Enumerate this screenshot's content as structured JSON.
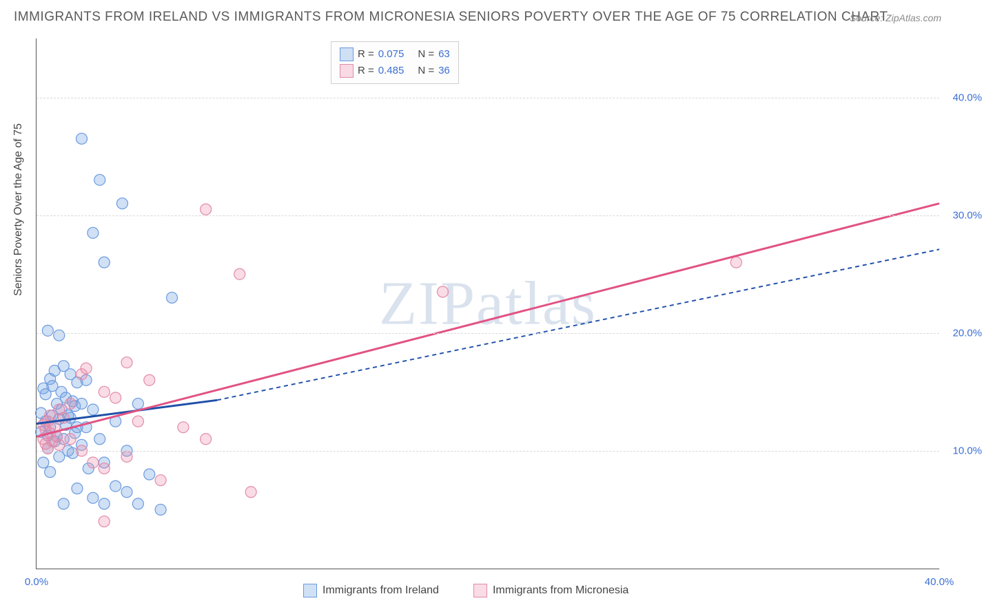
{
  "title": "IMMIGRANTS FROM IRELAND VS IMMIGRANTS FROM MICRONESIA SENIORS POVERTY OVER THE AGE OF 75 CORRELATION CHART",
  "source": "Source: ZipAtlas.com",
  "watermark": "ZIPatlas",
  "y_axis_title": "Seniors Poverty Over the Age of 75",
  "chart": {
    "type": "scatter",
    "xlim": [
      0,
      40
    ],
    "ylim": [
      0,
      45
    ],
    "x_ticks": [
      0,
      40
    ],
    "y_ticks": [
      10,
      20,
      30,
      40
    ],
    "x_tick_labels": [
      "0.0%",
      "40.0%"
    ],
    "y_tick_labels": [
      "10.0%",
      "20.0%",
      "30.0%",
      "40.0%"
    ],
    "grid_y": [
      10,
      20,
      30,
      40
    ],
    "grid_color": "#d8d8d8",
    "background_color": "#ffffff",
    "marker_radius": 8,
    "marker_stroke_width": 1.2,
    "series": [
      {
        "name": "Immigrants from Ireland",
        "fill_color": "rgba(120,165,225,0.35)",
        "stroke_color": "#6a9adf",
        "line_color": "#1f4fa8",
        "R": "0.075",
        "N": "63",
        "trend_solid": [
          [
            0,
            12.3
          ],
          [
            8,
            14.3
          ]
        ],
        "trend_dashed": [
          [
            8,
            14.3
          ],
          [
            40,
            27.1
          ]
        ],
        "points": [
          [
            0.2,
            11.6
          ],
          [
            0.2,
            13.2
          ],
          [
            0.3,
            9.0
          ],
          [
            0.3,
            15.3
          ],
          [
            0.4,
            12.5
          ],
          [
            0.4,
            14.8
          ],
          [
            0.5,
            10.2
          ],
          [
            0.5,
            11.3
          ],
          [
            0.6,
            16.1
          ],
          [
            0.6,
            12.0
          ],
          [
            0.6,
            8.2
          ],
          [
            0.7,
            13.0
          ],
          [
            0.7,
            15.5
          ],
          [
            0.8,
            10.8
          ],
          [
            0.8,
            16.8
          ],
          [
            0.9,
            11.2
          ],
          [
            0.9,
            14.0
          ],
          [
            1.0,
            12.7
          ],
          [
            1.0,
            9.5
          ],
          [
            1.1,
            15.0
          ],
          [
            1.1,
            13.5
          ],
          [
            1.2,
            11.0
          ],
          [
            1.2,
            17.2
          ],
          [
            1.3,
            12.2
          ],
          [
            1.3,
            14.5
          ],
          [
            1.4,
            10.0
          ],
          [
            1.4,
            13.0
          ],
          [
            1.5,
            16.5
          ],
          [
            1.5,
            12.8
          ],
          [
            1.6,
            9.8
          ],
          [
            1.6,
            14.2
          ],
          [
            1.7,
            11.5
          ],
          [
            1.7,
            13.8
          ],
          [
            1.8,
            15.8
          ],
          [
            1.8,
            12.0
          ],
          [
            0.5,
            20.2
          ],
          [
            1.0,
            19.8
          ],
          [
            2.0,
            14.0
          ],
          [
            2.0,
            10.5
          ],
          [
            2.2,
            12.0
          ],
          [
            2.3,
            8.5
          ],
          [
            2.5,
            13.5
          ],
          [
            2.5,
            6.0
          ],
          [
            2.8,
            11.0
          ],
          [
            3.0,
            9.0
          ],
          [
            3.0,
            5.5
          ],
          [
            3.5,
            12.5
          ],
          [
            3.5,
            7.0
          ],
          [
            4.0,
            10.0
          ],
          [
            4.0,
            6.5
          ],
          [
            4.5,
            14.0
          ],
          [
            5.0,
            8.0
          ],
          [
            5.5,
            5.0
          ],
          [
            6.0,
            23.0
          ],
          [
            2.0,
            36.5
          ],
          [
            2.8,
            33.0
          ],
          [
            3.8,
            31.0
          ],
          [
            2.5,
            28.5
          ],
          [
            3.0,
            26.0
          ],
          [
            1.2,
            5.5
          ],
          [
            1.8,
            6.8
          ],
          [
            2.2,
            16.0
          ],
          [
            4.5,
            5.5
          ]
        ]
      },
      {
        "name": "Immigrants from Micronesia",
        "fill_color": "rgba(235,140,170,0.30)",
        "stroke_color": "#e38aa9",
        "line_color": "#e15284",
        "R": "0.485",
        "N": "36",
        "trend_solid": [
          [
            0,
            11.2
          ],
          [
            40,
            31.0
          ]
        ],
        "points": [
          [
            0.3,
            11.0
          ],
          [
            0.3,
            12.2
          ],
          [
            0.4,
            10.6
          ],
          [
            0.4,
            11.8
          ],
          [
            0.5,
            12.5
          ],
          [
            0.5,
            10.2
          ],
          [
            0.6,
            11.5
          ],
          [
            0.6,
            13.0
          ],
          [
            0.7,
            10.8
          ],
          [
            0.8,
            12.0
          ],
          [
            0.9,
            11.2
          ],
          [
            1.0,
            13.5
          ],
          [
            1.0,
            10.5
          ],
          [
            1.2,
            12.8
          ],
          [
            1.5,
            11.0
          ],
          [
            1.5,
            14.0
          ],
          [
            2.0,
            16.5
          ],
          [
            2.0,
            10.0
          ],
          [
            2.2,
            17.0
          ],
          [
            2.5,
            9.0
          ],
          [
            3.0,
            15.0
          ],
          [
            3.0,
            8.5
          ],
          [
            3.5,
            14.5
          ],
          [
            4.0,
            17.5
          ],
          [
            4.0,
            9.5
          ],
          [
            4.5,
            12.5
          ],
          [
            5.0,
            16.0
          ],
          [
            5.5,
            7.5
          ],
          [
            6.5,
            12.0
          ],
          [
            7.5,
            11.0
          ],
          [
            7.5,
            30.5
          ],
          [
            9.0,
            25.0
          ],
          [
            9.5,
            6.5
          ],
          [
            18.0,
            23.5
          ],
          [
            31.0,
            26.0
          ],
          [
            3.0,
            4.0
          ]
        ]
      }
    ]
  },
  "legend_top": {
    "rows": [
      {
        "swatch_series": 0,
        "r_label": "R =",
        "r_val": "0.075",
        "n_label": "N =",
        "n_val": "63"
      },
      {
        "swatch_series": 1,
        "r_label": "R =",
        "r_val": "0.485",
        "n_label": "N =",
        "n_val": "36"
      }
    ]
  },
  "legend_bottom": {
    "items": [
      {
        "swatch_series": 0,
        "label": "Immigrants from Ireland"
      },
      {
        "swatch_series": 1,
        "label": "Immigrants from Micronesia"
      }
    ]
  },
  "colors": {
    "title_text": "#5a5a5a",
    "source_text": "#8a8a8a",
    "tick_text": "#3b6fd4",
    "axis_text": "#444444"
  }
}
